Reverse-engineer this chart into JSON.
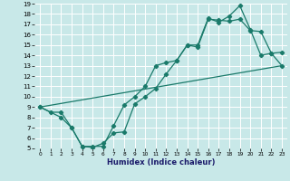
{
  "xlabel": "Humidex (Indice chaleur)",
  "bg_color": "#c8e8e8",
  "grid_color": "#ffffff",
  "line_color": "#1a7a6a",
  "xlim": [
    -0.5,
    23.5
  ],
  "ylim": [
    5,
    19
  ],
  "xticks": [
    0,
    1,
    2,
    3,
    4,
    5,
    6,
    7,
    8,
    9,
    10,
    11,
    12,
    13,
    14,
    15,
    16,
    17,
    18,
    19,
    20,
    21,
    22,
    23
  ],
  "yticks": [
    5,
    6,
    7,
    8,
    9,
    10,
    11,
    12,
    13,
    14,
    15,
    16,
    17,
    18,
    19
  ],
  "line1_x": [
    0,
    1,
    2,
    3,
    4,
    5,
    6,
    7,
    8,
    9,
    10,
    11,
    12,
    13,
    14,
    15,
    16,
    17,
    18,
    19,
    20,
    21,
    22,
    23
  ],
  "line1_y": [
    9.0,
    8.5,
    8.5,
    7.0,
    5.2,
    5.2,
    5.2,
    7.2,
    9.2,
    10.0,
    11.0,
    13.0,
    13.3,
    13.5,
    15.0,
    14.8,
    17.5,
    17.4,
    17.3,
    17.5,
    16.4,
    16.3,
    14.2,
    14.3
  ],
  "line2_x": [
    0,
    2,
    3,
    4,
    5,
    6,
    7,
    8,
    9,
    10,
    11,
    12,
    13,
    14,
    15,
    16,
    17,
    18,
    19,
    20,
    21,
    22,
    23
  ],
  "line2_y": [
    9.0,
    8.0,
    7.0,
    5.2,
    5.1,
    5.5,
    6.5,
    6.6,
    9.3,
    10.0,
    10.8,
    12.2,
    13.5,
    15.0,
    15.0,
    17.6,
    17.2,
    17.8,
    18.8,
    16.5,
    14.0,
    14.2,
    13.0
  ],
  "line3_x": [
    0,
    23
  ],
  "line3_y": [
    9.0,
    13.0
  ]
}
